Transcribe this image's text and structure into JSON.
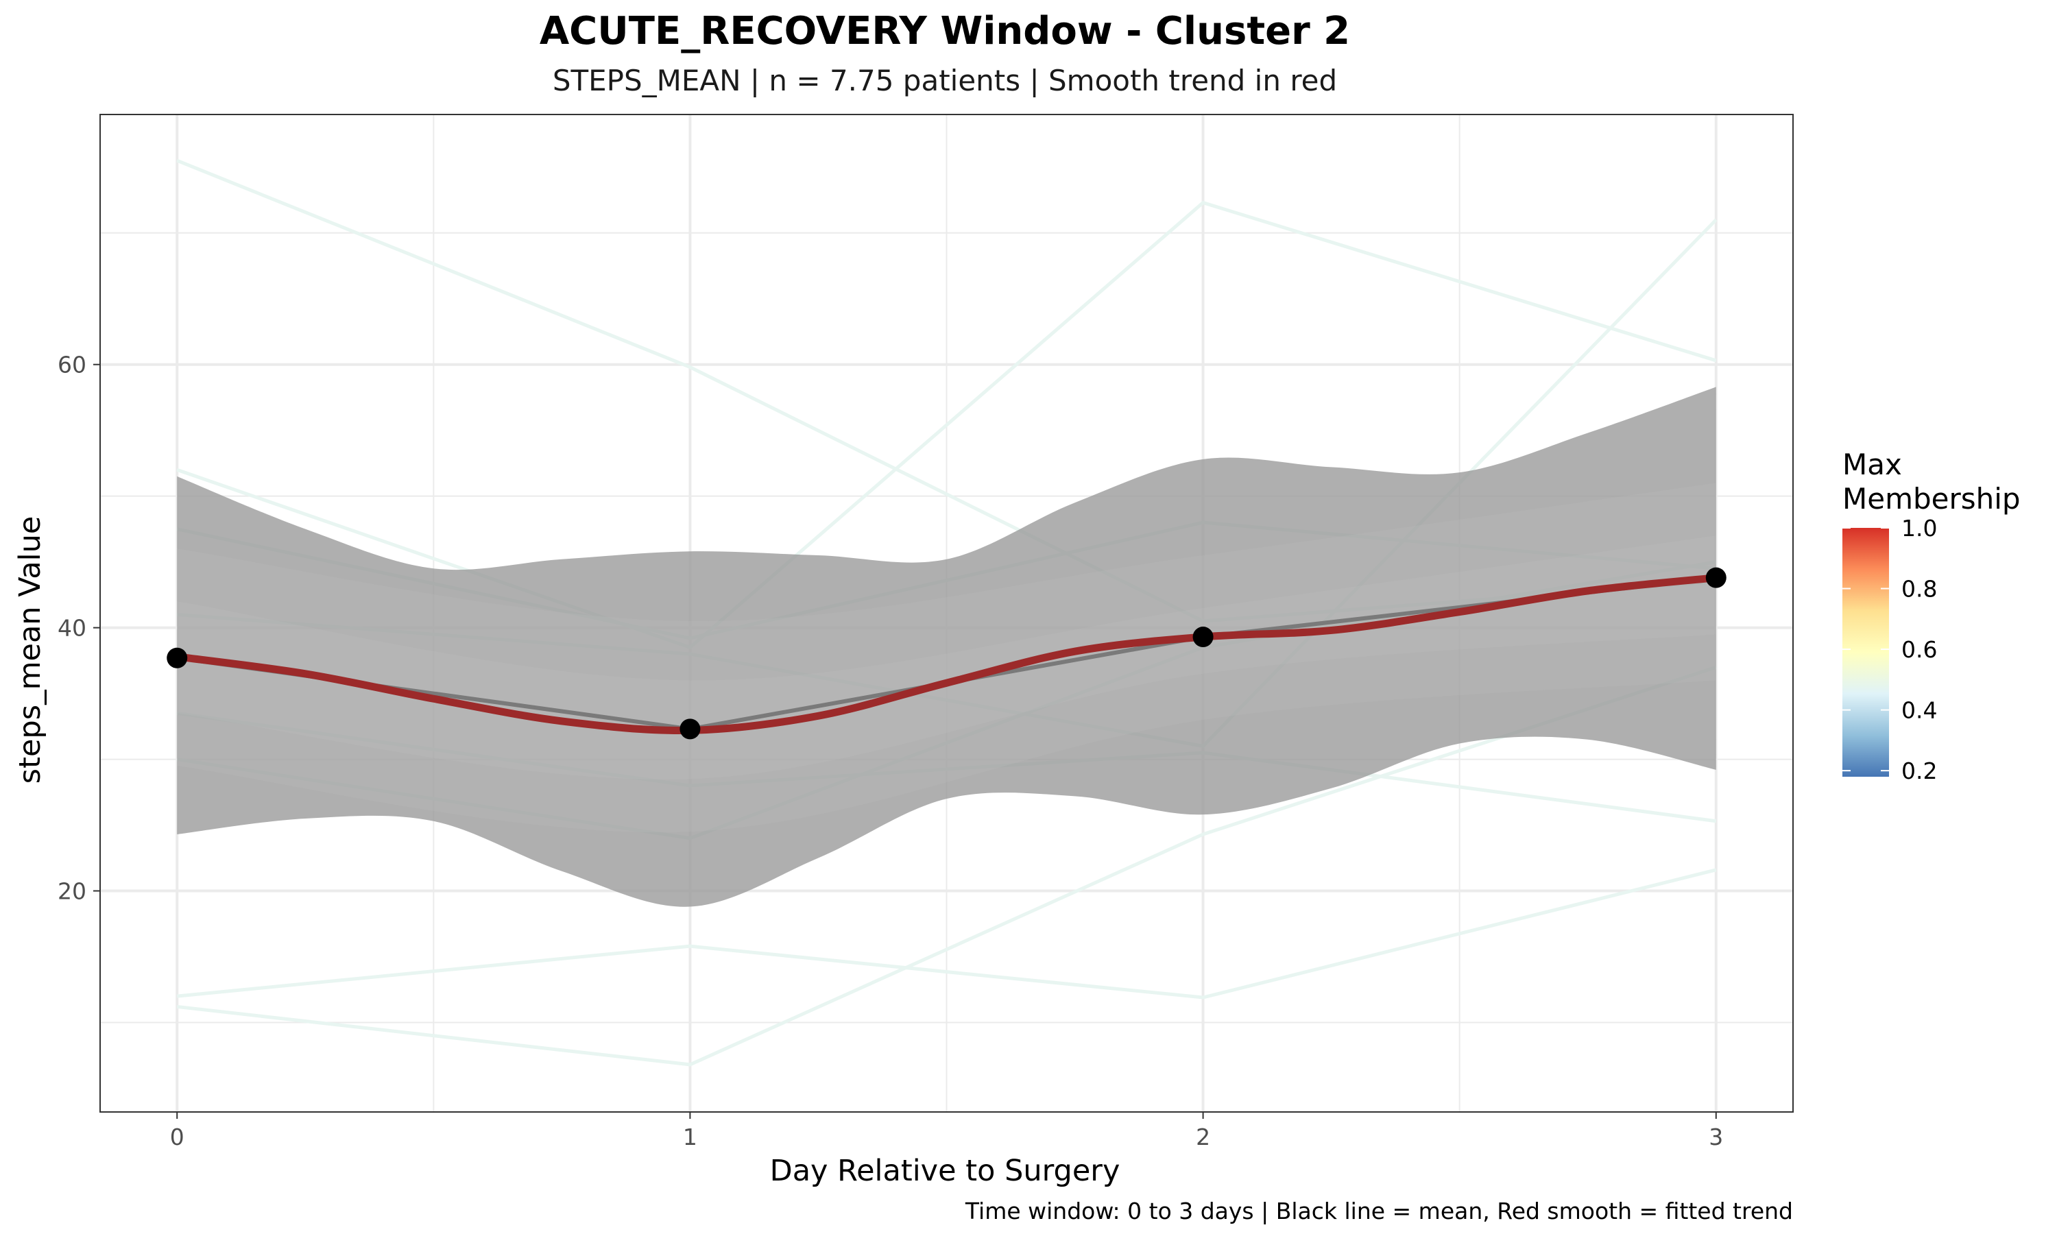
{
  "chart_data": {
    "type": "line",
    "title": "ACUTE_RECOVERY Window - Cluster 2",
    "subtitle": "STEPS_MEAN | n = 7.75 patients | Smooth trend in red",
    "xlabel": "Day Relative to Surgery",
    "ylabel": "steps_mean Value",
    "caption": "Time window: 0 to 3 days | Black line = mean, Red smooth = fitted trend",
    "xlim": [
      -0.15,
      3.15
    ],
    "ylim": [
      3.2,
      79
    ],
    "x_ticks": [
      0,
      1,
      2,
      3
    ],
    "y_ticks": [
      20,
      40,
      60
    ],
    "grid": true,
    "legend_position": "right",
    "colors": {
      "individual_line": "#e8f5f1",
      "ribbon": "#999999",
      "mean_line": "#000000",
      "smooth": "#9c2a2a",
      "grid": "#ebebeb",
      "panel_border": "#333333"
    },
    "individual_series": [
      {
        "x": [
          0,
          1,
          2,
          3
        ],
        "y": [
          75.5,
          59.8,
          40.5,
          43.5
        ]
      },
      {
        "x": [
          0,
          1,
          2,
          3
        ],
        "y": [
          52,
          38.5,
          72.3,
          60.3
        ]
      },
      {
        "x": [
          0,
          1,
          2,
          3
        ],
        "y": [
          47.5,
          39.2,
          48,
          44.5
        ]
      },
      {
        "x": [
          0,
          1,
          2,
          3
        ],
        "y": [
          41,
          38,
          31,
          71
        ]
      },
      {
        "x": [
          0,
          1,
          2,
          3
        ],
        "y": [
          30,
          24,
          38.5,
          45
        ]
      },
      {
        "x": [
          0,
          1,
          2,
          3
        ],
        "y": [
          33.5,
          28,
          30.5,
          25.3
        ]
      },
      {
        "x": [
          0,
          1,
          2,
          3
        ],
        "y": [
          11.2,
          6.8,
          24.3,
          37
        ]
      },
      {
        "x": [
          0,
          1,
          2,
          3
        ],
        "y": [
          12,
          15.8,
          11.9,
          21.6
        ]
      }
    ],
    "ribbons": [
      {
        "x": [
          0,
          1,
          2,
          3
        ],
        "lower": [
          29.5,
          24.5,
          33,
          36
        ],
        "upper": [
          46,
          40.5,
          45.5,
          51
        ]
      },
      {
        "x": [
          0,
          1,
          2,
          3
        ],
        "lower": [
          33.5,
          28.5,
          36.5,
          39.5
        ],
        "upper": [
          42,
          36,
          41.5,
          47
        ]
      }
    ],
    "smooth_band": {
      "x": [
        0,
        0.25,
        0.5,
        0.75,
        1,
        1.25,
        1.5,
        1.75,
        2,
        2.25,
        2.5,
        2.75,
        3
      ],
      "lower": [
        24.3,
        25.5,
        25.3,
        21.5,
        18.8,
        22.5,
        27,
        27.2,
        25.8,
        27.8,
        31.2,
        31.5,
        29.2
      ],
      "upper": [
        51.5,
        47.5,
        44.5,
        45.2,
        45.8,
        45.5,
        45.2,
        49.5,
        52.8,
        52.2,
        51.8,
        54.8,
        58.3
      ]
    },
    "mean_series": {
      "x": [
        0,
        1,
        2,
        3
      ],
      "y": [
        37.7,
        32.3,
        39.3,
        43.8
      ]
    },
    "smooth_series": {
      "x": [
        0,
        0.25,
        0.5,
        0.75,
        1,
        1.25,
        1.5,
        1.75,
        2,
        2.25,
        2.5,
        2.75,
        3
      ],
      "y": [
        37.8,
        36.5,
        34.6,
        32.9,
        32.2,
        33.3,
        35.8,
        38.2,
        39.3,
        39.8,
        41.2,
        42.8,
        43.8
      ]
    },
    "legend": {
      "title_lines": [
        "Max",
        "Membership"
      ],
      "labels": [
        "1.0",
        "0.8",
        "0.6",
        "0.4",
        "0.2"
      ],
      "values": [
        1.0,
        0.8,
        0.6,
        0.4,
        0.2
      ],
      "range": [
        0.18,
        1.0
      ],
      "gradient_colors": [
        "#4575b4",
        "#91bfdb",
        "#e0f3f8",
        "#ffffbf",
        "#fee090",
        "#fc8d59",
        "#d73027"
      ]
    }
  }
}
